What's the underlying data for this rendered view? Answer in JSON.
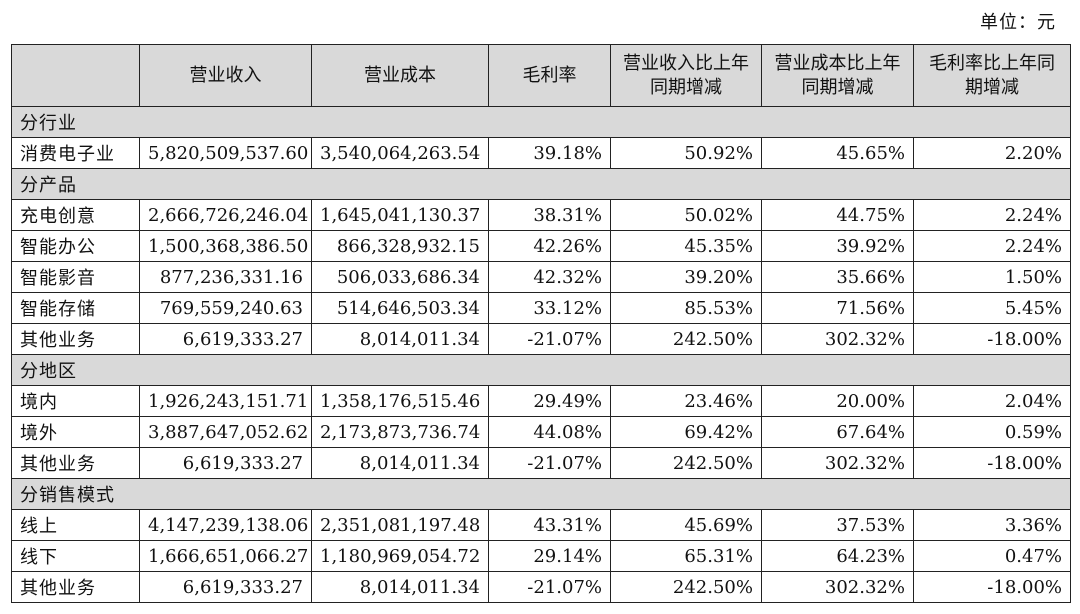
{
  "unit_label": "单位：元",
  "headers": [
    "",
    "营业收入",
    "营业成本",
    "毛利率",
    "营业收入比上年同期增减",
    "营业成本比上年同期增减",
    "毛利率比上年同期增减"
  ],
  "sections": [
    {
      "title": "分行业",
      "rows": [
        [
          "消费电子业",
          "5,820,509,537.60",
          "3,540,064,263.54",
          "39.18%",
          "50.92%",
          "45.65%",
          "2.20%"
        ]
      ]
    },
    {
      "title": "分产品",
      "rows": [
        [
          "充电创意",
          "2,666,726,246.04",
          "1,645,041,130.37",
          "38.31%",
          "50.02%",
          "44.75%",
          "2.24%"
        ],
        [
          "智能办公",
          "1,500,368,386.50",
          "866,328,932.15",
          "42.26%",
          "45.35%",
          "39.92%",
          "2.24%"
        ],
        [
          "智能影音",
          "877,236,331.16",
          "506,033,686.34",
          "42.32%",
          "39.20%",
          "35.66%",
          "1.50%"
        ],
        [
          "智能存储",
          "769,559,240.63",
          "514,646,503.34",
          "33.12%",
          "85.53%",
          "71.56%",
          "5.45%"
        ],
        [
          "其他业务",
          "6,619,333.27",
          "8,014,011.34",
          "-21.07%",
          "242.50%",
          "302.32%",
          "-18.00%"
        ]
      ]
    },
    {
      "title": "分地区",
      "rows": [
        [
          "境内",
          "1,926,243,151.71",
          "1,358,176,515.46",
          "29.49%",
          "23.46%",
          "20.00%",
          "2.04%"
        ],
        [
          "境外",
          "3,887,647,052.62",
          "2,173,873,736.74",
          "44.08%",
          "69.42%",
          "67.64%",
          "0.59%"
        ],
        [
          "其他业务",
          "6,619,333.27",
          "8,014,011.34",
          "-21.07%",
          "242.50%",
          "302.32%",
          "-18.00%"
        ]
      ]
    },
    {
      "title": "分销售模式",
      "rows": [
        [
          "线上",
          "4,147,239,138.06",
          "2,351,081,197.48",
          "43.31%",
          "45.69%",
          "37.53%",
          "3.36%"
        ],
        [
          "线下",
          "1,666,651,066.27",
          "1,180,969,054.72",
          "29.14%",
          "65.31%",
          "64.23%",
          "0.47%"
        ],
        [
          "其他业务",
          "6,619,333.27",
          "8,014,011.34",
          "-21.07%",
          "242.50%",
          "302.32%",
          "-18.00%"
        ]
      ]
    }
  ]
}
